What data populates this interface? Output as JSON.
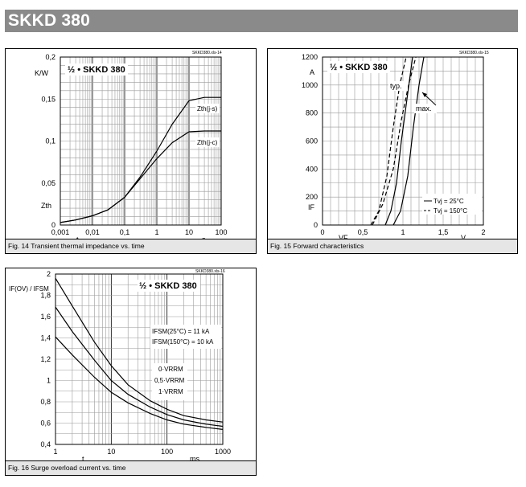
{
  "header": {
    "title": "SKKD 380"
  },
  "charts": [
    {
      "id": "fig14",
      "ref": "SKKD380.xls-14",
      "badge": "½ • SKKD 380",
      "caption": "Fig. 14 Transient thermal impedance vs. time",
      "unit_y": "K/W",
      "symbol_y": "Zth",
      "symbol_x": "t",
      "unit_x": "s",
      "xticks": [
        "0,001",
        "0,01",
        "0,1",
        "1",
        "10",
        "100"
      ],
      "yticks": [
        "0",
        "0,05",
        "0,1",
        "0,15",
        "0,2"
      ],
      "series_labels": [
        "Zth(j-s)",
        "Zth(j-c)"
      ]
    },
    {
      "id": "fig15",
      "ref": "SKKD380.xls-15",
      "badge": "½ • SKKD 380",
      "caption": "Fig. 15 Forward characteristics",
      "unit_y": "A",
      "symbol_y": "IF",
      "symbol_x": "VF",
      "unit_x": "V",
      "xticks": [
        "0",
        "0,5",
        "1",
        "1,5",
        "2"
      ],
      "yticks": [
        "0",
        "200",
        "400",
        "600",
        "800",
        "1000",
        "1200"
      ],
      "annot": [
        "typ.",
        "max."
      ],
      "legend": [
        "Tvj = 25°C",
        "Tvj = 150°C"
      ]
    },
    {
      "id": "fig16",
      "ref": "SKKD380.xls-16",
      "badge": "½ • SKKD 380",
      "caption": "Fig. 16 Surge overload current vs. time",
      "symbol_y": "IF(OV) / IFSM",
      "symbol_x": "t",
      "unit_x": "ms",
      "xticks": [
        "1",
        "10",
        "100",
        "1000"
      ],
      "yticks": [
        "0,4",
        "0,6",
        "0,8",
        "1",
        "1,2",
        "1,4",
        "1,6",
        "1,8",
        "2"
      ],
      "notes": [
        "IFSM(25°C) = 11 kA",
        "IFSM(150°C) = 10 kA"
      ],
      "series_labels": [
        "0·VRRM",
        "0,5·VRRM",
        "1·VRRM"
      ]
    }
  ],
  "chart_data": [
    {
      "type": "line",
      "title": "Transient thermal impedance vs. time",
      "xlabel": "t",
      "ylabel": "Zth",
      "xscale": "log",
      "xlim": [
        0.001,
        100
      ],
      "ylim": [
        0,
        0.2
      ],
      "grid": true,
      "series": [
        {
          "name": "Zth(j-s)",
          "x": [
            0.001,
            0.003,
            0.01,
            0.03,
            0.1,
            0.3,
            1,
            3,
            10,
            30,
            100
          ],
          "values": [
            0.003,
            0.006,
            0.011,
            0.018,
            0.033,
            0.057,
            0.088,
            0.12,
            0.148,
            0.152,
            0.152
          ]
        },
        {
          "name": "Zth(j-c)",
          "x": [
            0.001,
            0.003,
            0.01,
            0.03,
            0.1,
            0.3,
            1,
            3,
            10,
            30,
            100
          ],
          "values": [
            0.003,
            0.006,
            0.011,
            0.018,
            0.033,
            0.055,
            0.079,
            0.098,
            0.111,
            0.112,
            0.112
          ]
        }
      ]
    },
    {
      "type": "line",
      "title": "Forward characteristics",
      "xlabel": "VF",
      "ylabel": "IF",
      "xlim": [
        0,
        2
      ],
      "ylim": [
        0,
        1200
      ],
      "grid": true,
      "series": [
        {
          "name": "typ. Tvj = 25°C",
          "x": [
            0.78,
            0.85,
            0.92,
            0.98,
            1.05,
            1.12
          ],
          "values": [
            0,
            100,
            300,
            600,
            900,
            1200
          ]
        },
        {
          "name": "typ. Tvj = 150°C",
          "x": [
            0.6,
            0.7,
            0.8,
            0.88,
            0.96,
            1.04
          ],
          "values": [
            0,
            100,
            350,
            700,
            1000,
            1200
          ]
        },
        {
          "name": "max. Tvj = 25°C",
          "x": [
            0.88,
            0.97,
            1.06,
            1.13,
            1.2,
            1.26
          ],
          "values": [
            0,
            100,
            350,
            700,
            1000,
            1200
          ]
        },
        {
          "name": "max. Tvj = 150°C",
          "x": [
            0.62,
            0.75,
            0.88,
            0.98,
            1.07,
            1.16
          ],
          "values": [
            0,
            150,
            400,
            750,
            1000,
            1200
          ]
        }
      ]
    },
    {
      "type": "line",
      "title": "Surge overload current vs. time",
      "xlabel": "t",
      "ylabel": "IF(OV)/IFSM",
      "xscale": "log",
      "xlim": [
        1,
        1000
      ],
      "ylim": [
        0.4,
        2
      ],
      "grid": true,
      "series": [
        {
          "name": "0·VRRM",
          "x": [
            1,
            2,
            5,
            10,
            20,
            50,
            100,
            200,
            500,
            1000
          ],
          "values": [
            1.96,
            1.7,
            1.36,
            1.14,
            0.96,
            0.81,
            0.73,
            0.67,
            0.63,
            0.61
          ]
        },
        {
          "name": "0,5·VRRM",
          "x": [
            1,
            2,
            5,
            10,
            20,
            50,
            100,
            200,
            500,
            1000
          ],
          "values": [
            1.69,
            1.46,
            1.19,
            1.0,
            0.87,
            0.75,
            0.68,
            0.63,
            0.59,
            0.57
          ]
        },
        {
          "name": "1·VRRM",
          "x": [
            1,
            2,
            5,
            10,
            20,
            50,
            100,
            200,
            500,
            1000
          ],
          "values": [
            1.41,
            1.24,
            1.03,
            0.89,
            0.79,
            0.69,
            0.63,
            0.59,
            0.56,
            0.54
          ]
        }
      ]
    }
  ]
}
